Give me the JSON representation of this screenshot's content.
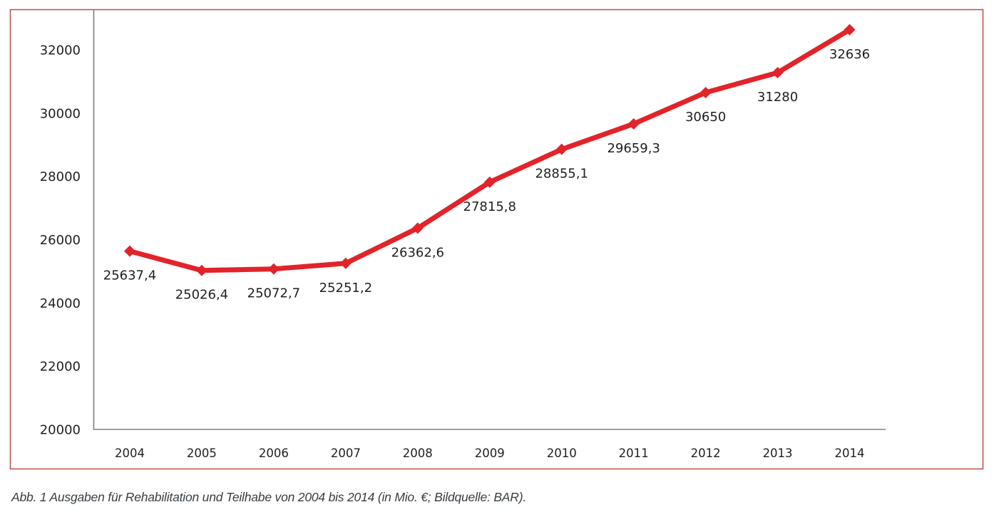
{
  "figure": {
    "caption": "Abb. 1 Ausgaben für Rehabilitation und Teilhabe von 2004 bis 2014 (in Mio. €; Bildquelle: BAR)."
  },
  "chart_data": {
    "type": "line",
    "title": "",
    "categories": [
      "2004",
      "2005",
      "2006",
      "2007",
      "2008",
      "2009",
      "2010",
      "2011",
      "2012",
      "2013",
      "2014"
    ],
    "series": [
      {
        "name": "Ausgaben für Rehabilitation und Teilhabe (in Mio. €)",
        "values": [
          25637.4,
          25026.4,
          25072.7,
          25251.2,
          26362.6,
          27815.8,
          28855.1,
          29659.3,
          30650,
          31280,
          32636
        ],
        "point_labels": [
          "25637,4",
          "25026,4",
          "25072,7",
          "25251,2",
          "26362,6",
          "27815,8",
          "28855,1",
          "29659,3",
          "30650",
          "31280",
          "32636"
        ],
        "color": "#e2232a",
        "marker": "diamond"
      }
    ],
    "xlabel": "",
    "ylabel": "",
    "ylim": [
      20000,
      32000
    ],
    "yticks": [
      20000,
      22000,
      24000,
      26000,
      28000,
      30000,
      32000
    ],
    "grid": false,
    "legend_position": "none",
    "colors": {
      "line": "#e2232a",
      "frame_border": "#be4b4b",
      "axis": "#808080",
      "tick_label": "#1f1f1f",
      "data_label": "#1f1f1f"
    }
  }
}
